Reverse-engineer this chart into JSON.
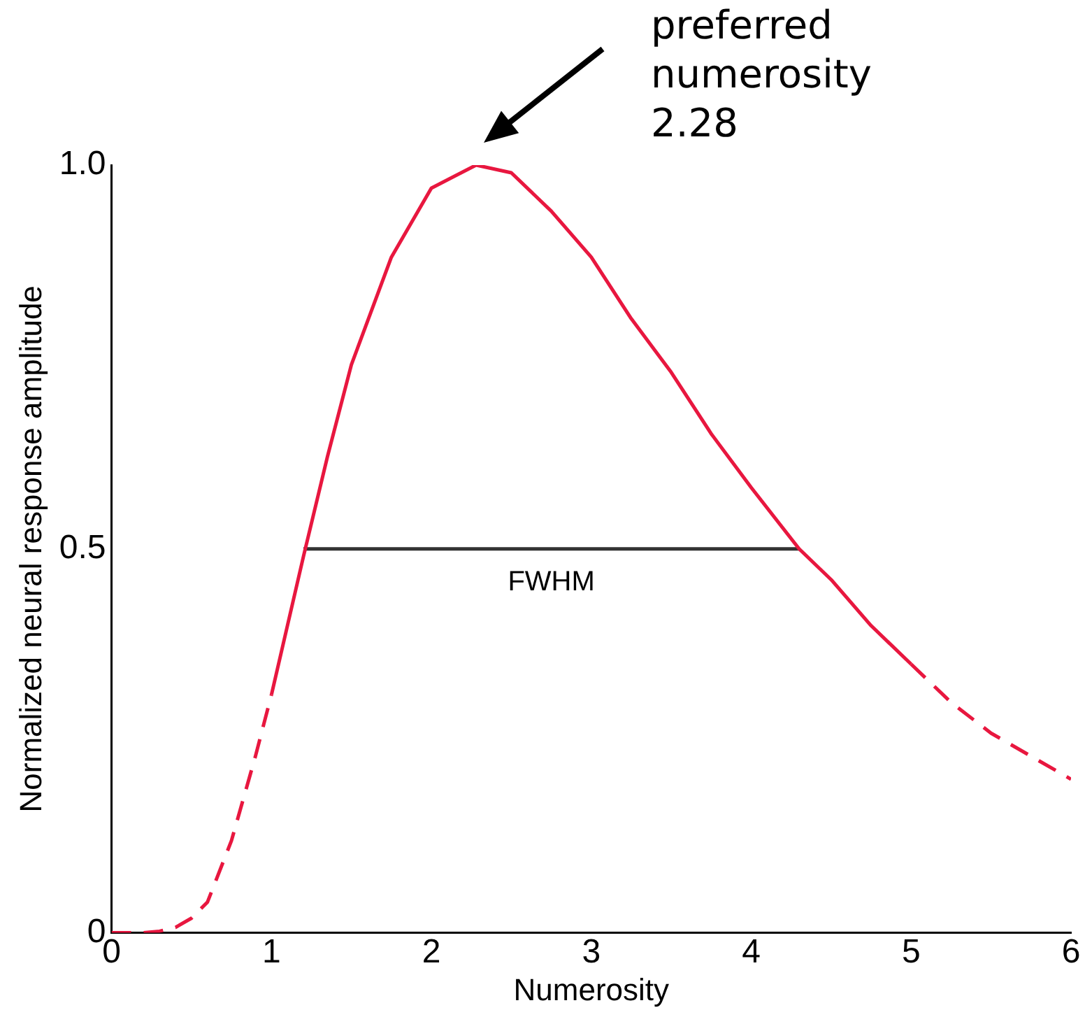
{
  "chart_data": {
    "type": "line",
    "xlabel": "Numerosity",
    "ylabel": "Normalized neural response amplitude",
    "xlim": [
      0,
      6
    ],
    "xticks": [
      0,
      1,
      2,
      3,
      4,
      5,
      6
    ],
    "ylim": [
      0,
      1
    ],
    "yticks": [
      0,
      0.5,
      {
        "value": 1,
        "label": "1.0"
      }
    ],
    "series": [
      {
        "color": "#e8173f",
        "line_style": "dashed",
        "x": [
          0,
          0.2,
          0.3,
          0.4,
          0.5,
          0.6,
          0.75,
          0.9,
          1
        ],
        "values": [
          0,
          0,
          0.002,
          0.007,
          0.019,
          0.04,
          0.12,
          0.23,
          0.31
        ]
      },
      {
        "color": "#e8173f",
        "line_style": "solid",
        "x": [
          1,
          1.1,
          1.2,
          1.35,
          1.5,
          1.75,
          2,
          2.28,
          2.5,
          2.75,
          3,
          3.25,
          3.5,
          3.75,
          4,
          4.3,
          4.5,
          4.75,
          5
        ],
        "values": [
          0.31,
          0.4,
          0.49,
          0.62,
          0.74,
          0.88,
          0.97,
          1,
          0.99,
          0.94,
          0.88,
          0.8,
          0.73,
          0.65,
          0.58,
          0.5,
          0.46,
          0.4,
          0.35
        ]
      },
      {
        "color": "#e8173f",
        "line_style": "dashed",
        "x": [
          5,
          5.25,
          5.5,
          5.75,
          6
        ],
        "values": [
          0.35,
          0.3,
          0.26,
          0.23,
          0.2
        ]
      },
      {
        "color": "#333333",
        "line_style": "solid",
        "x": [
          1.2,
          4.3
        ],
        "values": [
          0.5,
          0.5
        ]
      }
    ],
    "annotations": [
      "preferred numerosity 2.28",
      {
        "text": "FWHM",
        "x": 2.75,
        "y": 0.5
      }
    ]
  }
}
